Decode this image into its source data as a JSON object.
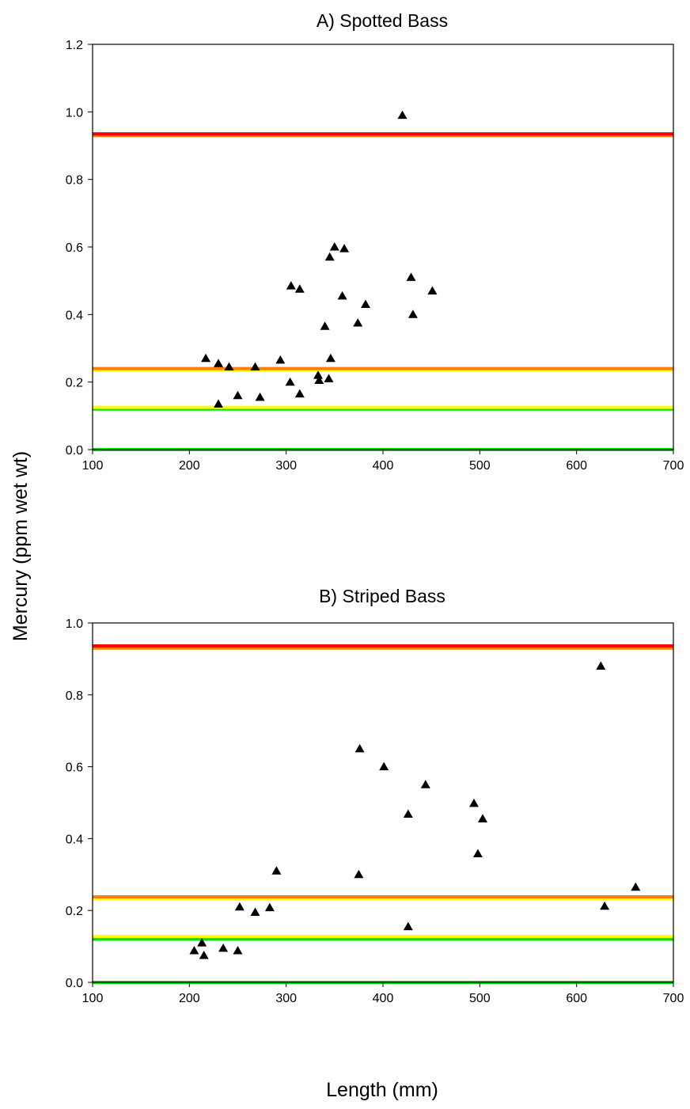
{
  "figure": {
    "ylabel": "Mercury (ppm wet wt)",
    "xlabel": "Length (mm)"
  },
  "chart_data": [
    {
      "type": "scatter",
      "title": "A) Spotted Bass",
      "xlim": [
        100,
        700
      ],
      "ylim": [
        0,
        1.2
      ],
      "x_ticks": [
        "100",
        "200",
        "300",
        "400",
        "500",
        "600",
        "700"
      ],
      "y_ticks": [
        "0.0",
        "0.2",
        "0.4",
        "0.6",
        "0.8",
        "1.0",
        "1.2"
      ],
      "marker": "triangle",
      "reference_lines": [
        {
          "y": 0.0,
          "color": "#00e600"
        },
        {
          "y": 0.12,
          "color": "#00e600"
        },
        {
          "y": 0.125,
          "color": "#ffff00"
        },
        {
          "y": 0.235,
          "color": "#ffff00"
        },
        {
          "y": 0.24,
          "color": "#ff8000"
        },
        {
          "y": 0.93,
          "color": "#ff8000"
        },
        {
          "y": 0.935,
          "color": "#ff0000"
        }
      ],
      "points": [
        {
          "x": 217,
          "y": 0.27
        },
        {
          "x": 230,
          "y": 0.255
        },
        {
          "x": 230,
          "y": 0.135
        },
        {
          "x": 241,
          "y": 0.245
        },
        {
          "x": 250,
          "y": 0.16
        },
        {
          "x": 268,
          "y": 0.245
        },
        {
          "x": 273,
          "y": 0.155
        },
        {
          "x": 294,
          "y": 0.265
        },
        {
          "x": 304,
          "y": 0.2
        },
        {
          "x": 305,
          "y": 0.485
        },
        {
          "x": 314,
          "y": 0.165
        },
        {
          "x": 314,
          "y": 0.475
        },
        {
          "x": 333,
          "y": 0.22
        },
        {
          "x": 334,
          "y": 0.205
        },
        {
          "x": 340,
          "y": 0.365
        },
        {
          "x": 344,
          "y": 0.21
        },
        {
          "x": 345,
          "y": 0.57
        },
        {
          "x": 346,
          "y": 0.27
        },
        {
          "x": 350,
          "y": 0.6
        },
        {
          "x": 358,
          "y": 0.455
        },
        {
          "x": 360,
          "y": 0.595
        },
        {
          "x": 374,
          "y": 0.375
        },
        {
          "x": 382,
          "y": 0.43
        },
        {
          "x": 420,
          "y": 0.99
        },
        {
          "x": 429,
          "y": 0.51
        },
        {
          "x": 431,
          "y": 0.4
        },
        {
          "x": 451,
          "y": 0.47
        }
      ]
    },
    {
      "type": "scatter",
      "title": "B) Striped Bass",
      "xlim": [
        100,
        700
      ],
      "ylim": [
        0,
        1.0
      ],
      "x_ticks": [
        "100",
        "200",
        "300",
        "400",
        "500",
        "600",
        "700"
      ],
      "y_ticks": [
        "0.0",
        "0.2",
        "0.4",
        "0.6",
        "0.8",
        "1.0"
      ],
      "marker": "triangle",
      "reference_lines": [
        {
          "y": 0.0,
          "color": "#00e600"
        },
        {
          "y": 0.12,
          "color": "#00e600"
        },
        {
          "y": 0.128,
          "color": "#ffff00"
        },
        {
          "y": 0.232,
          "color": "#ffff00"
        },
        {
          "y": 0.238,
          "color": "#ff8000"
        },
        {
          "y": 0.93,
          "color": "#ff8000"
        },
        {
          "y": 0.936,
          "color": "#ff0000"
        }
      ],
      "points": [
        {
          "x": 205,
          "y": 0.088
        },
        {
          "x": 213,
          "y": 0.11
        },
        {
          "x": 215,
          "y": 0.075
        },
        {
          "x": 235,
          "y": 0.095
        },
        {
          "x": 250,
          "y": 0.088
        },
        {
          "x": 252,
          "y": 0.21
        },
        {
          "x": 268,
          "y": 0.195
        },
        {
          "x": 283,
          "y": 0.208
        },
        {
          "x": 290,
          "y": 0.31
        },
        {
          "x": 375,
          "y": 0.3
        },
        {
          "x": 376,
          "y": 0.65
        },
        {
          "x": 401,
          "y": 0.6
        },
        {
          "x": 426,
          "y": 0.468
        },
        {
          "x": 426,
          "y": 0.155
        },
        {
          "x": 444,
          "y": 0.55
        },
        {
          "x": 494,
          "y": 0.498
        },
        {
          "x": 498,
          "y": 0.358
        },
        {
          "x": 503,
          "y": 0.455
        },
        {
          "x": 625,
          "y": 0.88
        },
        {
          "x": 629,
          "y": 0.212
        },
        {
          "x": 661,
          "y": 0.265
        }
      ]
    }
  ]
}
